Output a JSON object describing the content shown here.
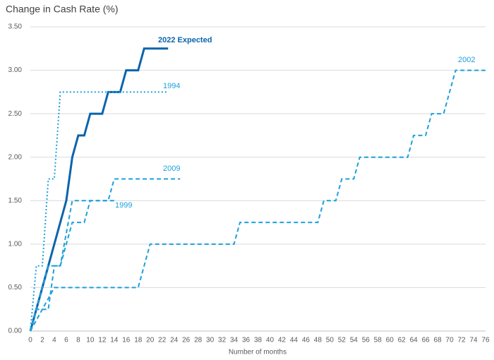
{
  "chart_data": {
    "type": "line",
    "title": "Change in Cash Rate (%)",
    "x_label": "Number of months",
    "xlim": [
      0,
      76
    ],
    "xticks": [
      0,
      2,
      4,
      6,
      8,
      10,
      12,
      14,
      16,
      18,
      20,
      22,
      24,
      26,
      28,
      30,
      32,
      34,
      36,
      38,
      40,
      42,
      44,
      46,
      48,
      50,
      52,
      54,
      56,
      58,
      60,
      62,
      64,
      66,
      68,
      70,
      72,
      74,
      76
    ],
    "ylim": [
      0,
      3.5
    ],
    "yticks": [
      {
        "value": 0,
        "label": "0.00"
      },
      {
        "value": 0.5,
        "label": "0.50"
      },
      {
        "value": 1,
        "label": "1.00"
      },
      {
        "value": 1.5,
        "label": "1.50"
      },
      {
        "value": 2,
        "label": "2.00"
      },
      {
        "value": 2.5,
        "label": "2.50"
      },
      {
        "value": 3,
        "label": "3.00"
      },
      {
        "value": 3.5,
        "label": "3.50"
      }
    ],
    "grid": true,
    "series": [
      {
        "name": "2022 Expected",
        "color": "#0a64ad",
        "style": "solid",
        "x": [
          0,
          6,
          7,
          8,
          9,
          10,
          12,
          13,
          15,
          16,
          18,
          19,
          23
        ],
        "values": [
          0,
          1.5,
          2.0,
          2.25,
          2.25,
          2.5,
          2.5,
          2.75,
          2.75,
          3.0,
          3.0,
          3.25,
          3.25
        ]
      },
      {
        "name": "1994",
        "color": "#1ca0dc",
        "style": "dotted",
        "x": [
          0,
          1,
          2,
          3,
          4,
          5,
          23
        ],
        "values": [
          0,
          0.75,
          0.75,
          1.75,
          1.75,
          2.75,
          2.75
        ]
      },
      {
        "name": "2009",
        "color": "#1ca0dc",
        "style": "dashed",
        "x": [
          0,
          1,
          3,
          4,
          5,
          7,
          9,
          10,
          13,
          14,
          25
        ],
        "values": [
          0,
          0.25,
          0.25,
          0.75,
          0.75,
          1.25,
          1.25,
          1.5,
          1.5,
          1.75,
          1.75
        ]
      },
      {
        "name": "1999",
        "color": "#1ca0dc",
        "style": "dashed",
        "x": [
          0,
          3,
          5,
          7,
          8,
          14
        ],
        "values": [
          0,
          0.75,
          0.75,
          1.5,
          1.5,
          1.5
        ]
      },
      {
        "name": "2002",
        "color": "#1ca0dc",
        "style": "dashed",
        "x": [
          0,
          4,
          18,
          20,
          34,
          35,
          48,
          49,
          51,
          52,
          54,
          55,
          63,
          64,
          66,
          67,
          69,
          71,
          76
        ],
        "values": [
          0,
          0.5,
          0.5,
          1,
          1,
          1.25,
          1.25,
          1.5,
          1.5,
          1.75,
          1.75,
          2,
          2,
          2.25,
          2.25,
          2.5,
          2.5,
          3,
          3
        ]
      }
    ]
  }
}
